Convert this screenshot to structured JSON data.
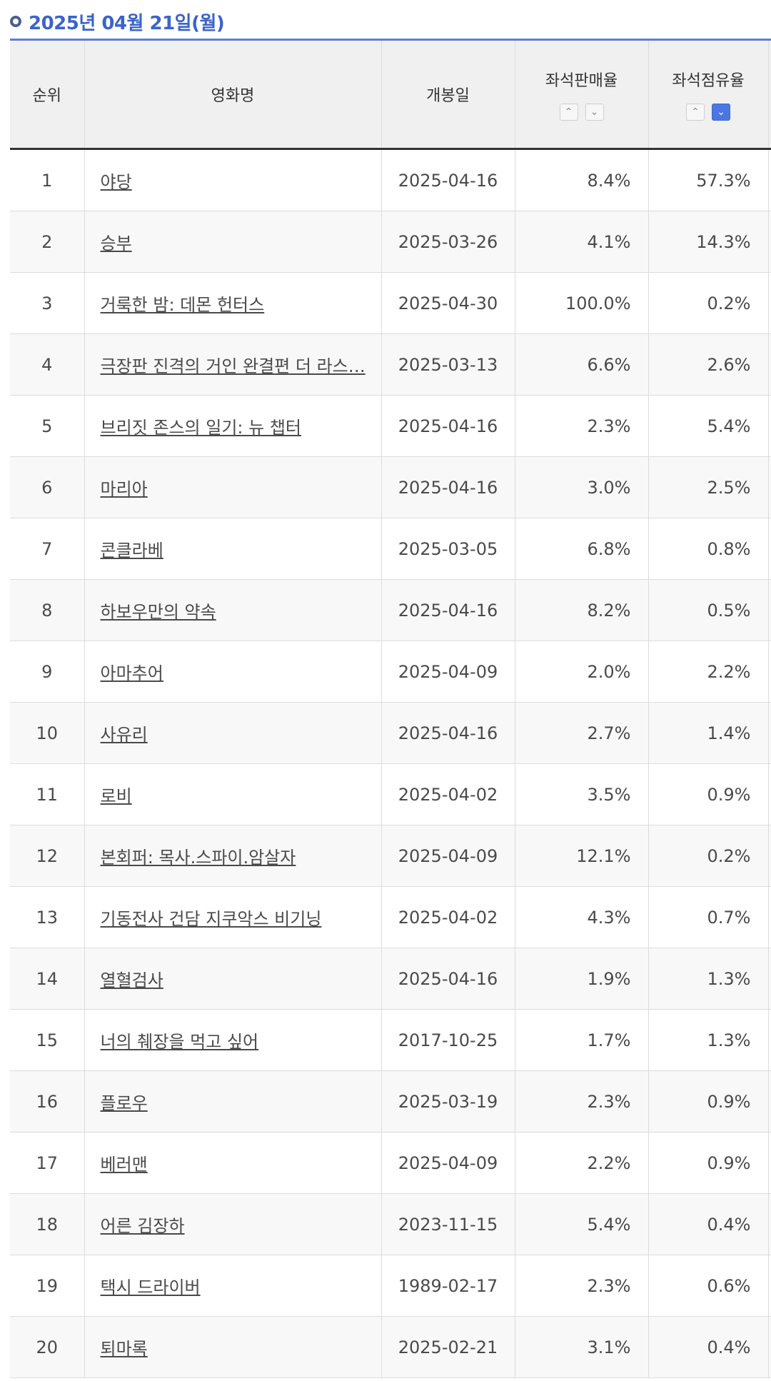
{
  "header": {
    "date": "2025년 04월 21일(월)"
  },
  "columns": {
    "rank": "순위",
    "title": "영화명",
    "open_date": "개봉일",
    "seat_sales": "좌석판매율",
    "seat_share": "좌석점유율"
  },
  "rows": [
    {
      "rank": "1",
      "title": "야당",
      "open_date": "2025-04-16",
      "seat_sales": "8.4%",
      "seat_share": "57.3%"
    },
    {
      "rank": "2",
      "title": "승부",
      "open_date": "2025-03-26",
      "seat_sales": "4.1%",
      "seat_share": "14.3%"
    },
    {
      "rank": "3",
      "title": "거룩한 밤: 데몬 헌터스",
      "open_date": "2025-04-30",
      "seat_sales": "100.0%",
      "seat_share": "0.2%"
    },
    {
      "rank": "4",
      "title": "극장판 진격의 거인 완결편 더 라스…",
      "open_date": "2025-03-13",
      "seat_sales": "6.6%",
      "seat_share": "2.6%"
    },
    {
      "rank": "5",
      "title": "브리짓 존스의 일기: 뉴 챕터",
      "open_date": "2025-04-16",
      "seat_sales": "2.3%",
      "seat_share": "5.4%"
    },
    {
      "rank": "6",
      "title": "마리아",
      "open_date": "2025-04-16",
      "seat_sales": "3.0%",
      "seat_share": "2.5%"
    },
    {
      "rank": "7",
      "title": "콘클라베",
      "open_date": "2025-03-05",
      "seat_sales": "6.8%",
      "seat_share": "0.8%"
    },
    {
      "rank": "8",
      "title": "하보우만의 약속",
      "open_date": "2025-04-16",
      "seat_sales": "8.2%",
      "seat_share": "0.5%"
    },
    {
      "rank": "9",
      "title": "아마추어",
      "open_date": "2025-04-09",
      "seat_sales": "2.0%",
      "seat_share": "2.2%"
    },
    {
      "rank": "10",
      "title": "사유리",
      "open_date": "2025-04-16",
      "seat_sales": "2.7%",
      "seat_share": "1.4%"
    },
    {
      "rank": "11",
      "title": "로비",
      "open_date": "2025-04-02",
      "seat_sales": "3.5%",
      "seat_share": "0.9%"
    },
    {
      "rank": "12",
      "title": "본회퍼: 목사.스파이.암살자",
      "open_date": "2025-04-09",
      "seat_sales": "12.1%",
      "seat_share": "0.2%"
    },
    {
      "rank": "13",
      "title": "기동전사 건담 지쿠악스 비기닝",
      "open_date": "2025-04-02",
      "seat_sales": "4.3%",
      "seat_share": "0.7%"
    },
    {
      "rank": "14",
      "title": "열혈검사",
      "open_date": "2025-04-16",
      "seat_sales": "1.9%",
      "seat_share": "1.3%"
    },
    {
      "rank": "15",
      "title": "너의 췌장을 먹고 싶어",
      "open_date": "2017-10-25",
      "seat_sales": "1.7%",
      "seat_share": "1.3%"
    },
    {
      "rank": "16",
      "title": "플로우",
      "open_date": "2025-03-19",
      "seat_sales": "2.3%",
      "seat_share": "0.9%"
    },
    {
      "rank": "17",
      "title": "베러맨",
      "open_date": "2025-04-09",
      "seat_sales": "2.2%",
      "seat_share": "0.9%"
    },
    {
      "rank": "18",
      "title": "어른 김장하",
      "open_date": "2023-11-15",
      "seat_sales": "5.4%",
      "seat_share": "0.4%"
    },
    {
      "rank": "19",
      "title": "택시 드라이버",
      "open_date": "1989-02-17",
      "seat_sales": "2.3%",
      "seat_share": "0.6%"
    },
    {
      "rank": "20",
      "title": "퇴마록",
      "open_date": "2025-02-21",
      "seat_sales": "3.1%",
      "seat_share": "0.4%"
    }
  ],
  "sort": {
    "seat_sales": "none",
    "seat_share": "descending"
  },
  "colors": {
    "accent": "#3b63c9",
    "header_bg": "#f0f0f0",
    "active_sort": "#4a78e0"
  }
}
